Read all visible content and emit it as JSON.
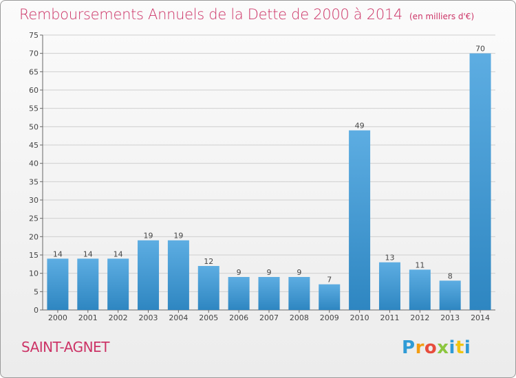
{
  "header": {
    "title": "Remboursements Annuels de la Dette de 2000 à 2014",
    "unit": "(en milliers d'€)"
  },
  "commune": "SAINT-AGNET",
  "logo": {
    "letters": [
      "P",
      "r",
      "o",
      "x",
      "i",
      "t",
      "i"
    ]
  },
  "colors": {
    "bar_light": "#5dade2",
    "bar_dark": "#2e86c1",
    "title": "#cc3366",
    "grid": "#cfcfcf"
  },
  "chart_data": {
    "type": "bar",
    "title": "Remboursements Annuels de la Dette de 2000 à 2014",
    "categories": [
      "2000",
      "2001",
      "2002",
      "2003",
      "2004",
      "2005",
      "2006",
      "2007",
      "2008",
      "2009",
      "2010",
      "2011",
      "2012",
      "2013",
      "2014"
    ],
    "values": [
      14,
      14,
      14,
      19,
      19,
      12,
      9,
      9,
      9,
      7,
      49,
      13,
      11,
      8,
      70
    ],
    "ylim": [
      0,
      75
    ],
    "yticks": [
      0,
      5,
      10,
      15,
      20,
      25,
      30,
      35,
      40,
      45,
      50,
      55,
      60,
      65,
      70,
      75
    ],
    "grid": true
  }
}
